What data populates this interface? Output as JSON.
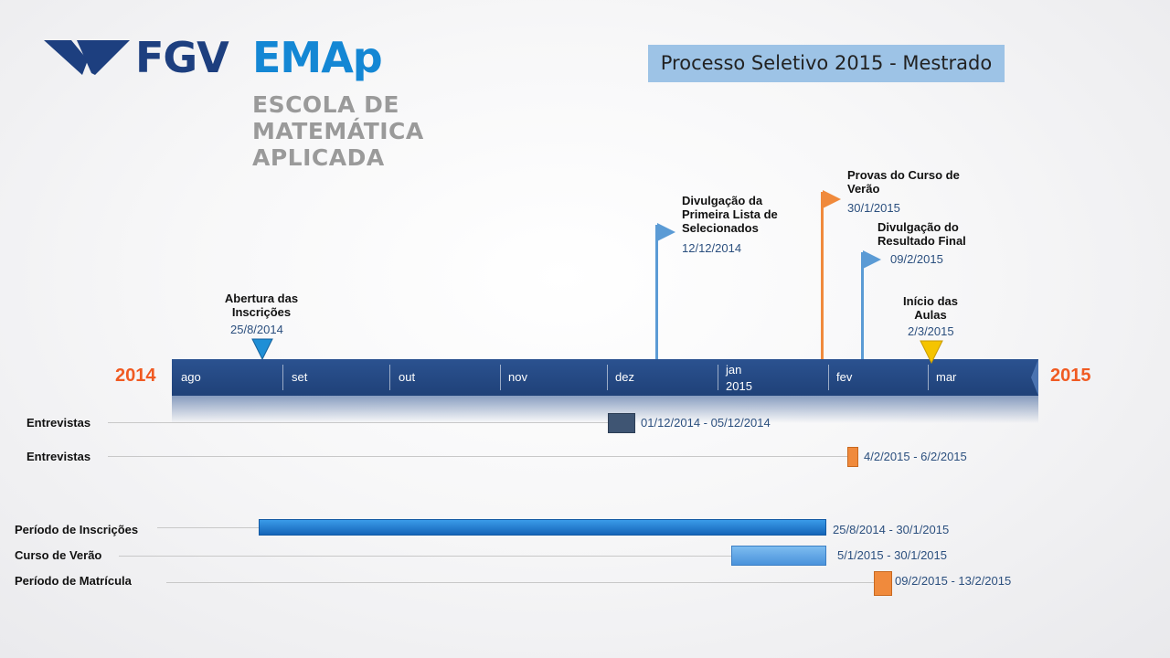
{
  "logo": {
    "fgv": "FGV",
    "emap": "EMAp",
    "school_line1": "ESCOLA DE",
    "school_line2": "MATEMÁTICA",
    "school_line3": "APLICADA"
  },
  "title": "Processo Seletivo 2015 - Mestrado",
  "timeline": {
    "start_year": "2014",
    "end_year": "2015",
    "months": [
      "ago",
      "set",
      "out",
      "nov",
      "dez",
      "jan",
      "fev",
      "mar"
    ],
    "jan_year": "2015"
  },
  "milestones": [
    {
      "title_lines": [
        "Abertura das",
        "Inscrições"
      ],
      "date": "25/8/2014",
      "marker": "triangle-down",
      "color": "#1f8fd6"
    },
    {
      "title_lines": [
        "Divulgação da",
        "Primeira Lista de",
        "Selecionados"
      ],
      "date": "12/12/2014",
      "marker": "flag",
      "color": "#5b9bd5"
    },
    {
      "title_lines": [
        "Provas do Curso de",
        "Verão"
      ],
      "date": "30/1/2015",
      "marker": "flag",
      "color": "#f08a3c"
    },
    {
      "title_lines": [
        "Divulgação do",
        "Resultado Final"
      ],
      "date": "09/2/2015",
      "marker": "flag",
      "color": "#5b9bd5"
    },
    {
      "title_lines": [
        "Início das",
        "Aulas"
      ],
      "date": "2/3/2015",
      "marker": "triangle-down",
      "color": "#f5c400"
    }
  ],
  "tasks": [
    {
      "label": "Entrevistas",
      "range": "01/12/2014 - 05/12/2014",
      "color": "#3f5573"
    },
    {
      "label": "Entrevistas",
      "range": "4/2/2015 - 6/2/2015",
      "color": "#f08a3c"
    },
    {
      "label": "Período de Inscrições",
      "range": "25/8/2014 - 30/1/2015",
      "color": "#1f7fd0"
    },
    {
      "label": "Curso de Verão",
      "range": "5/1/2015 - 30/1/2015",
      "color": "#5ba3e6"
    },
    {
      "label": "Período de Matrícula",
      "range": "09/2/2015 - 13/2/2015",
      "color": "#f08a3c"
    }
  ]
}
